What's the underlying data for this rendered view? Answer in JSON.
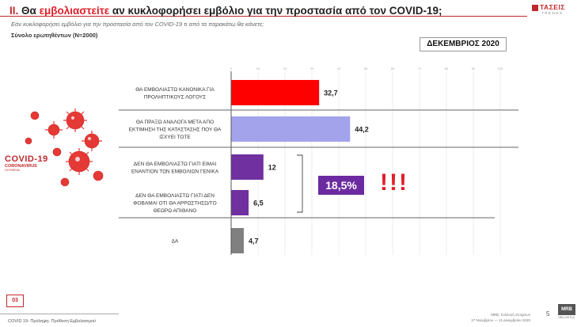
{
  "header": {
    "title_number": "ΙΙ.",
    "title_pre": " Θα ",
    "title_highlight": "εμβολιαστείτε",
    "title_post": " αν κυκλοφορήσει εμβόλιο για την προστασία από τον COVID-19;",
    "subtitle": "Εάν κυκλοφορήσει εμβόλιο για την προστασία από τον COVID-19 τι από τα παρακάτω θα κάνετε;",
    "sample": "Σύνολο ερωτηθέντων (N=2000)",
    "date_label": "ΔΕΚΕΜΒΡΙΟΣ 2020"
  },
  "logo": {
    "name": "ΤΑΣΕΙΣ",
    "sub": "TRENDS"
  },
  "covid_image": {
    "line1": "COVID-19",
    "line2": "CORONAVIRUS",
    "line3": "OUTBREAK"
  },
  "chart_data": {
    "type": "bar",
    "orientation": "horizontal",
    "categories": [
      "ΘΑ ΕΜΒΟΛΙΑΣΤΩ ΚΑΝΟΝΙΚΑ ΓΙΑ ΠΡΟΛΗΠΤΙΚΟΥΣ ΛΟΓΟΥΣ",
      "ΘΑ ΠΡΑΞΩ ΑΝΑΛΟΓΑ ΜΕΤΑ ΑΠΟ ΕΚΤΙΜΗΣΗ ΤΗΣ ΚΑΤΑΣΤΑΣΗΣ ΠΟΥ ΘΑ ΙΣΧΥΕΙ ΤΟΤΕ",
      "ΔΕΝ ΘΑ ΕΜΒΟΛΙΑΣΤΩ ΓΙΑΤΙ ΕΙΜΑΙ ΕΝΑΝΤΙΟΝ ΤΩΝ ΕΜΒΟΛΙΩΝ ΓΕΝΙΚΑ",
      "ΔΕΝ ΘΑ ΕΜΒΟΛΙΑΣΤΩ ΓΙΑΤΙ ΔΕΝ ΦΟΒΑΜΑΙ ΟΤΙ ΘΑ ΑΡΡΩΣΤΗΣΩ/ΤΟ ΘΕΩΡΩ ΑΠΙΘΑΝΟ",
      "ΔΑ"
    ],
    "label_lines": [
      [
        "ΘΑ ΕΜΒΟΛΙΑΣΤΩ ΚΑΝΟΝΙΚΑ ΓΙΑ",
        "ΠΡΟΛΗΠΤΙΚΟΥΣ ΛΟΓΟΥΣ"
      ],
      [
        "ΘΑ ΠΡΑΞΩ ΑΝΑΛΟΓΑ ΜΕΤΑ ΑΠΟ",
        "ΕΚΤΙΜΗΣΗ ΤΗΣ ΚΑΤΑΣΤΑΣΗΣ ΠΟΥ ΘΑ",
        "ΙΣΧΥΕΙ ΤΟΤΕ"
      ],
      [
        "ΔΕΝ ΘΑ ΕΜΒΟΛΙΑΣΤΩ ΓΙΑΤΙ ΕΙΜΑΙ",
        "ΕΝΑΝΤΙΟΝ ΤΩΝ ΕΜΒΟΛΙΩΝ ΓΕΝΙΚΑ"
      ],
      [
        "ΔΕΝ ΘΑ ΕΜΒΟΛΙΑΣΤΩ ΓΙΑΤΙ ΔΕΝ",
        "ΦΟΒΑΜΑΙ ΟΤΙ ΘΑ ΑΡΡΩΣΤΗΣΩ/ΤΟ",
        "ΘΕΩΡΩ ΑΠΙΘΑΝΟ"
      ],
      [
        "ΔΑ"
      ]
    ],
    "values": [
      32.7,
      44.2,
      12,
      6.5,
      4.7
    ],
    "value_labels": [
      "32,7",
      "44,2",
      "12",
      "6,5",
      "4,7"
    ],
    "colors": [
      "#ff0000",
      "#a3a3ec",
      "#7030a0",
      "#7030a0",
      "#808080"
    ],
    "x_ticks": [
      "0",
      "10",
      "20",
      "30",
      "40",
      "50",
      "60",
      "70",
      "80",
      "90",
      "100"
    ],
    "xlim": [
      0,
      100
    ],
    "grid": true,
    "bracket_total": "18,5%"
  },
  "annotation": {
    "exclamation": "!!!"
  },
  "footer": {
    "page_box": "03",
    "text": "COVID 19- Πρόληψη- Πρόθεση Εμβολιασμού",
    "credits_line1": "MRB, Συλλογή στοιχείων",
    "credits_line2": "27 Νοεμβρίου — 11 Δεκεμβρίου 2020",
    "page_number": "5",
    "mrb": "MRB",
    "mrb_sub": "HELLAS S.A."
  }
}
